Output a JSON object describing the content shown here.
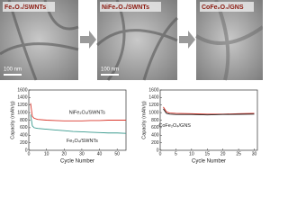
{
  "panels": [
    {
      "label": "Fe₃O₄/SWNTs",
      "scale_bar": "100 nm"
    },
    {
      "label": "NiFe₂O₄/SWNTs",
      "scale_bar": "100 nm"
    },
    {
      "label": "CoFe₂O₄/GNS"
    }
  ],
  "chart_data": [
    {
      "type": "line",
      "xlabel": "Cycle Number",
      "ylabel": "Capacity (mAh/g)",
      "x": [
        1,
        2,
        3,
        5,
        10,
        15,
        20,
        25,
        30,
        35,
        40,
        45,
        50,
        55
      ],
      "series": [
        {
          "name": "NiFe₂O₄/SWNTs",
          "color": "#d9362b",
          "values": [
            1250,
            900,
            850,
            820,
            800,
            790,
            780,
            780,
            780,
            790,
            790,
            800,
            800,
            800
          ]
        },
        {
          "name": "Fe₃O₄/SWNTs",
          "color": "#3a9a8e",
          "values": [
            950,
            650,
            600,
            580,
            560,
            540,
            520,
            500,
            490,
            480,
            470,
            460,
            460,
            450
          ]
        }
      ],
      "xlim": [
        0,
        55
      ],
      "xticks": [
        0,
        10,
        20,
        30,
        40,
        50
      ],
      "ylim": [
        0,
        1600
      ],
      "yticks": [
        0,
        200,
        400,
        600,
        800,
        1000,
        1200,
        1400,
        1600
      ]
    },
    {
      "type": "line",
      "xlabel": "Cycle Number",
      "ylabel": "Capacity (mAh/g)",
      "x": [
        1,
        2,
        3,
        5,
        10,
        15,
        20,
        25,
        30
      ],
      "series": [
        {
          "name": "CoFe₂O₄/GNS",
          "color": "#d9362b",
          "values": [
            1150,
            1020,
            990,
            980,
            970,
            960,
            960,
            970,
            980
          ]
        },
        {
          "color": "#222222",
          "values": [
            1100,
            980,
            960,
            950,
            950,
            940,
            950,
            955,
            960
          ]
        }
      ],
      "xlim": [
        0,
        31
      ],
      "xticks": [
        0,
        5,
        10,
        15,
        20,
        25,
        30
      ],
      "ylim": [
        0,
        1600
      ],
      "yticks": [
        0,
        200,
        400,
        600,
        800,
        1000,
        1200,
        1400,
        1600
      ]
    }
  ]
}
